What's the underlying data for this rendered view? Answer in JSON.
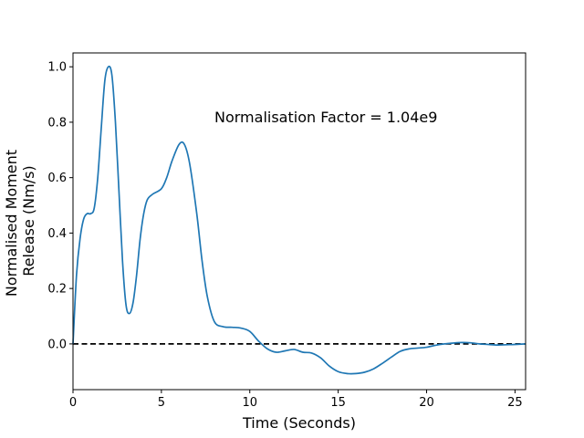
{
  "chart_data": {
    "type": "line",
    "title": "",
    "xlabel": "Time (Seconds)",
    "ylabel_lines": [
      "Normalised Moment",
      "Release (Nm/s)"
    ],
    "xlim": [
      0,
      25.6
    ],
    "ylim": [
      -0.165,
      1.05
    ],
    "xticks": [
      0,
      5,
      10,
      15,
      20,
      25
    ],
    "xtick_labels": [
      "0",
      "5",
      "10",
      "15",
      "20",
      "25"
    ],
    "yticks": [
      0.0,
      0.2,
      0.4,
      0.6,
      0.8,
      1.0
    ],
    "ytick_labels": [
      "0.0",
      "0.2",
      "0.4",
      "0.6",
      "0.8",
      "1.0"
    ],
    "grid": false,
    "annotation": "Normalisation Factor = 1.04e9",
    "reference_line": {
      "y": 0.0,
      "style": "dashed",
      "color": "#000000"
    },
    "series": [
      {
        "color": "#1f77b4",
        "x": [
          0,
          0.2,
          0.4,
          0.6,
          0.8,
          1.0,
          1.2,
          1.4,
          1.6,
          1.8,
          2.0,
          2.2,
          2.4,
          2.6,
          2.8,
          3.0,
          3.2,
          3.4,
          3.6,
          3.8,
          4.0,
          4.2,
          4.5,
          5.0,
          5.3,
          5.6,
          6.0,
          6.3,
          6.6,
          7.0,
          7.3,
          7.6,
          8.0,
          8.5,
          9.0,
          9.5,
          10.0,
          10.5,
          11.0,
          11.5,
          12.0,
          12.5,
          13.0,
          13.5,
          14.0,
          14.5,
          15.0,
          15.5,
          16.0,
          16.5,
          17.0,
          17.5,
          18.0,
          18.5,
          19.0,
          19.5,
          20.0,
          20.5,
          21.0,
          21.5,
          22.0,
          22.5,
          23.0,
          23.5,
          24.0,
          24.5,
          25.0,
          25.6
        ],
        "y": [
          0.0,
          0.25,
          0.38,
          0.45,
          0.47,
          0.47,
          0.49,
          0.6,
          0.78,
          0.95,
          1.0,
          0.97,
          0.8,
          0.55,
          0.3,
          0.14,
          0.11,
          0.15,
          0.25,
          0.38,
          0.47,
          0.52,
          0.54,
          0.56,
          0.6,
          0.66,
          0.72,
          0.72,
          0.65,
          0.47,
          0.3,
          0.17,
          0.08,
          0.062,
          0.06,
          0.057,
          0.045,
          0.01,
          -0.018,
          -0.03,
          -0.025,
          -0.02,
          -0.03,
          -0.033,
          -0.05,
          -0.08,
          -0.1,
          -0.107,
          -0.107,
          -0.102,
          -0.09,
          -0.07,
          -0.048,
          -0.027,
          -0.018,
          -0.015,
          -0.012,
          -0.005,
          0.0,
          0.003,
          0.005,
          0.004,
          0.0,
          -0.002,
          -0.004,
          -0.003,
          -0.002,
          0.0
        ]
      }
    ]
  }
}
